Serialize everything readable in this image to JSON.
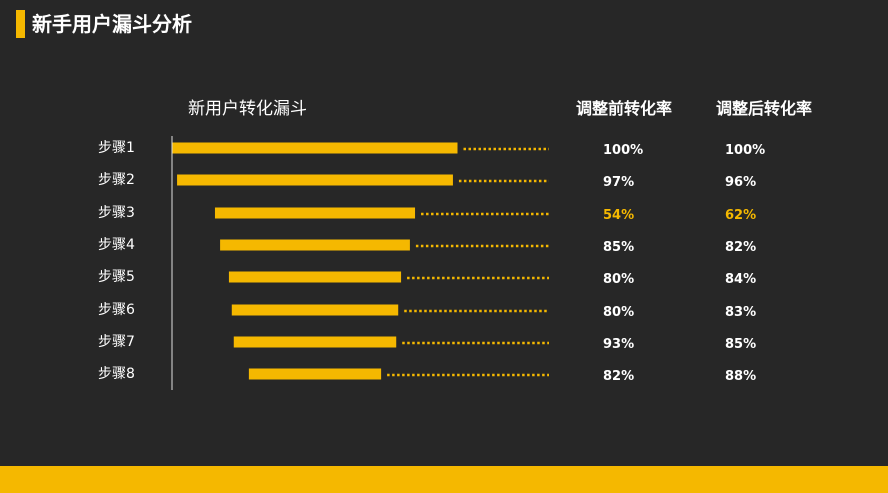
{
  "title": "新手用户漏斗分析",
  "colors": {
    "accent": "#f5b800",
    "background": "#272727",
    "text": "#ffffff",
    "highlight": "#f5b800"
  },
  "headers": {
    "before": "调整前转化率",
    "after": "调整后转化率"
  },
  "chart_data": {
    "type": "bar",
    "title": "新用户转化漏斗",
    "categories": [
      "步骤1",
      "步骤2",
      "步骤3",
      "步骤4",
      "步骤5",
      "步骤6",
      "步骤7",
      "步骤8"
    ],
    "values": [
      100,
      96.8,
      70.2,
      66.6,
      60.4,
      58.4,
      57.0,
      46.4
    ],
    "rate_before": [
      "100%",
      "97%",
      "54%",
      "85%",
      "80%",
      "80%",
      "93%",
      "82%"
    ],
    "rate_after": [
      "100%",
      "96%",
      "62%",
      "82%",
      "84%",
      "83%",
      "85%",
      "88%"
    ],
    "highlight_row": 2,
    "orientation": "horizontal-centered"
  }
}
